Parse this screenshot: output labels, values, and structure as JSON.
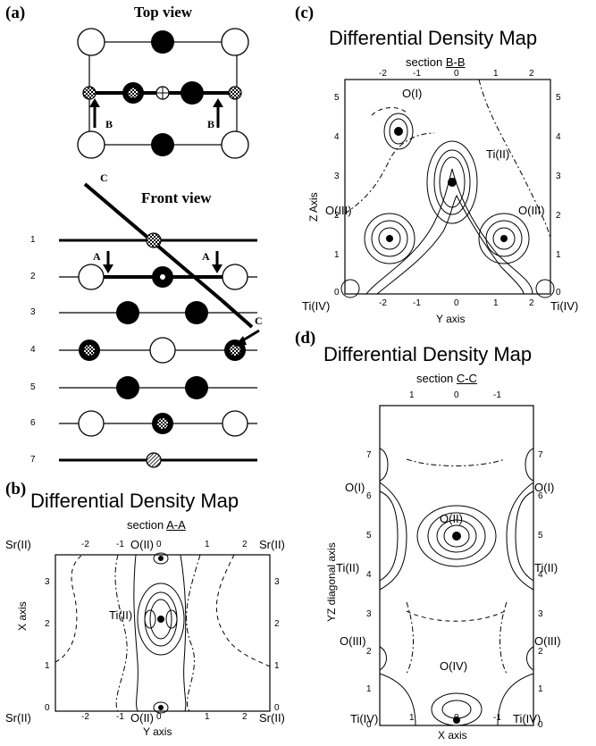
{
  "panel_a": {
    "letter": "(a)",
    "top_view_title": "Top view",
    "front_view_title": "Front view",
    "section_b_marks": [
      "B",
      "B"
    ],
    "section_a_marks": [
      "A",
      "A"
    ],
    "section_c_marks": [
      "C",
      "C"
    ],
    "layer_numbers": [
      "1",
      "2",
      "3",
      "4",
      "5",
      "6",
      "7"
    ]
  },
  "panel_b": {
    "letter": "(b)",
    "title": "Differential Density Map",
    "section_prefix": "section ",
    "section_name": "A-A",
    "xlabel": "Y axis",
    "ylabel": "X axis",
    "top_ticks": [
      "-2",
      "-1",
      "0",
      "1",
      "2"
    ],
    "bottom_ticks": [
      "-2",
      "-1",
      "0",
      "1",
      "2"
    ],
    "left_ticks": [
      "3",
      "2",
      "1",
      "0"
    ],
    "right_ticks": [
      "3",
      "2",
      "1",
      "0"
    ],
    "labels": {
      "sr_tl": "Sr(II)",
      "sr_tr": "Sr(II)",
      "sr_bl": "Sr(II)",
      "sr_br": "Sr(II)",
      "o_top": "O(II)",
      "o_bot": "O(II)",
      "ti": "Ti(II)"
    }
  },
  "panel_c": {
    "letter": "(c)",
    "title": "Differential Density Map",
    "section_prefix": "section ",
    "section_name": "B-B",
    "xlabel": "Y axis",
    "ylabel": "Z Axis",
    "top_ticks": [
      "-2",
      "-1",
      "0",
      "1",
      "2"
    ],
    "bottom_ticks": [
      "-2",
      "-1",
      "0",
      "1",
      "2"
    ],
    "left_ticks": [
      "5",
      "4",
      "3",
      "2",
      "1",
      "0"
    ],
    "right_ticks": [
      "5",
      "4",
      "3",
      "2",
      "1",
      "0"
    ],
    "labels": {
      "o1": "O(I)",
      "ti2": "Ti(II)",
      "o3_left": "O(III)",
      "o3_right": "O(III)",
      "ti4_left": "Ti(IV)",
      "ti4_right": "Ti(IV)"
    }
  },
  "panel_d": {
    "letter": "(d)",
    "title": "Differential Density Map",
    "section_prefix": "section ",
    "section_name": "C-C",
    "xlabel": "X axis",
    "ylabel": "YZ diagonal axis",
    "top_ticks": [
      "1",
      "0",
      "-1"
    ],
    "bottom_ticks": [
      "1",
      "0",
      "-1"
    ],
    "left_ticks": [
      "7",
      "6",
      "5",
      "4",
      "3",
      "2",
      "1",
      "0"
    ],
    "right_ticks": [
      "7",
      "6",
      "5",
      "4",
      "3",
      "2",
      "1",
      "0"
    ],
    "labels": {
      "o1_left": "O(I)",
      "o1_right": "O(I)",
      "o2": "O(II)",
      "ti2_left": "Ti(II)",
      "ti2_right": "Ti(II)",
      "o3_left": "O(III)",
      "o3_right": "O(III)",
      "o4": "O(IV)",
      "ti4_left": "Ti(IV)",
      "ti4_right": "Ti(IV)"
    }
  }
}
